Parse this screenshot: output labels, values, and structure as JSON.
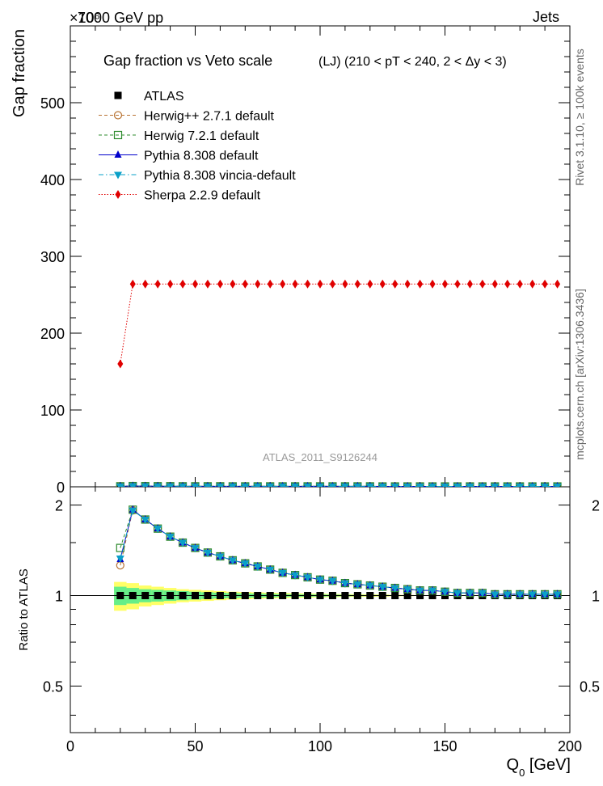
{
  "header": {
    "left": "7000 GeV pp",
    "right": "Jets",
    "multiplier": "×10⁶"
  },
  "side_labels": {
    "rivet": "Rivet 3.1.10, ≥ 100k events",
    "mcplots": "mcplots.cern.ch [arXiv:1306.3436]"
  },
  "chart_data": {
    "type": "line",
    "title": "Gap fraction vs Veto scale",
    "subtitle": "(LJ) (210 < pT < 240, 2 < Δy < 3)",
    "watermark": "ATLAS_2011_S9126244",
    "xlabel_main": "Q",
    "xlabel_sub": "0",
    "xlabel_unit": " [GeV]",
    "ylabel": "Gap fraction",
    "ratio_ylabel": "Ratio to ATLAS",
    "xlim": [
      0,
      200
    ],
    "ylim": [
      0,
      600
    ],
    "ratio_ylim": [
      0.35,
      2.3
    ],
    "x_ticks": [
      0,
      50,
      100,
      150,
      200
    ],
    "y_ticks": [
      0,
      100,
      200,
      300,
      400,
      500
    ],
    "ratio_ticks": [
      0.5,
      1,
      2
    ],
    "x": [
      20,
      25,
      30,
      35,
      40,
      45,
      50,
      55,
      60,
      65,
      70,
      75,
      80,
      85,
      90,
      95,
      100,
      105,
      110,
      115,
      120,
      125,
      130,
      135,
      140,
      145,
      150,
      155,
      160,
      165,
      170,
      175,
      180,
      185,
      190,
      195
    ],
    "series": [
      {
        "name": "ATLAS",
        "color": "#000000",
        "marker": "square-filled",
        "line": "none",
        "values": [
          0.5,
          0.5,
          0.5,
          0.5,
          0.5,
          0.5,
          0.5,
          0.5,
          0.5,
          0.5,
          0.5,
          0.5,
          0.5,
          0.5,
          0.5,
          0.5,
          0.5,
          0.5,
          0.5,
          0.5,
          0.5,
          0.5,
          0.5,
          0.5,
          0.5,
          0.5,
          0.5,
          0.5,
          0.5,
          0.5,
          0.5,
          0.5,
          0.5,
          0.5,
          0.5,
          0.5
        ],
        "ratio": [
          1,
          1,
          1,
          1,
          1,
          1,
          1,
          1,
          1,
          1,
          1,
          1,
          1,
          1,
          1,
          1,
          1,
          1,
          1,
          1,
          1,
          1,
          1,
          1,
          1,
          1,
          1,
          1,
          1,
          1,
          1,
          1,
          1,
          1,
          1,
          1
        ]
      },
      {
        "name": "Herwig++ 2.7.1 default",
        "color": "#b87333",
        "marker": "circle-open",
        "line": "dashed",
        "values": [
          0.6,
          1.0,
          0.9,
          0.8,
          0.8,
          0.7,
          0.7,
          0.7,
          0.7,
          0.6,
          0.6,
          0.6,
          0.6,
          0.6,
          0.6,
          0.6,
          0.6,
          0.6,
          0.6,
          0.6,
          0.6,
          0.5,
          0.5,
          0.5,
          0.5,
          0.5,
          0.5,
          0.5,
          0.5,
          0.5,
          0.5,
          0.5,
          0.5,
          0.5,
          0.5,
          0.5
        ],
        "ratio": [
          1.26,
          1.92,
          1.79,
          1.67,
          1.57,
          1.5,
          1.44,
          1.39,
          1.35,
          1.31,
          1.28,
          1.25,
          1.22,
          1.19,
          1.17,
          1.15,
          1.13,
          1.12,
          1.1,
          1.09,
          1.08,
          1.07,
          1.06,
          1.05,
          1.04,
          1.04,
          1.03,
          1.02,
          1.02,
          1.02,
          1.01,
          1.01,
          1.01,
          1.01,
          1.01,
          1.01
        ]
      },
      {
        "name": "Herwig 7.2.1 default",
        "color": "#2e8b2e",
        "marker": "square-open",
        "line": "dashed",
        "values": [
          0.7,
          1.0,
          0.9,
          0.8,
          0.8,
          0.7,
          0.7,
          0.7,
          0.7,
          0.6,
          0.6,
          0.6,
          0.6,
          0.6,
          0.6,
          0.6,
          0.6,
          0.6,
          0.6,
          0.6,
          0.6,
          0.5,
          0.5,
          0.5,
          0.5,
          0.5,
          0.5,
          0.5,
          0.5,
          0.5,
          0.5,
          0.5,
          0.5,
          0.5,
          0.5,
          0.5
        ],
        "ratio": [
          1.44,
          1.93,
          1.79,
          1.67,
          1.57,
          1.5,
          1.44,
          1.39,
          1.35,
          1.31,
          1.28,
          1.25,
          1.22,
          1.19,
          1.17,
          1.15,
          1.13,
          1.12,
          1.1,
          1.09,
          1.08,
          1.07,
          1.06,
          1.05,
          1.04,
          1.04,
          1.03,
          1.02,
          1.02,
          1.02,
          1.01,
          1.01,
          1.01,
          1.01,
          1.01,
          1.01
        ]
      },
      {
        "name": "Pythia 8.308 default",
        "color": "#0000cc",
        "marker": "triangle-up",
        "line": "solid",
        "values": [
          0.6,
          1.0,
          0.9,
          0.8,
          0.8,
          0.7,
          0.7,
          0.7,
          0.7,
          0.6,
          0.6,
          0.6,
          0.6,
          0.6,
          0.6,
          0.6,
          0.6,
          0.6,
          0.6,
          0.6,
          0.6,
          0.5,
          0.5,
          0.5,
          0.5,
          0.5,
          0.5,
          0.5,
          0.5,
          0.5,
          0.5,
          0.5,
          0.5,
          0.5,
          0.5,
          0.5
        ],
        "ratio": [
          1.32,
          1.93,
          1.79,
          1.67,
          1.57,
          1.5,
          1.44,
          1.39,
          1.35,
          1.31,
          1.28,
          1.25,
          1.22,
          1.19,
          1.17,
          1.15,
          1.13,
          1.12,
          1.1,
          1.09,
          1.08,
          1.07,
          1.06,
          1.05,
          1.04,
          1.04,
          1.03,
          1.02,
          1.02,
          1.02,
          1.01,
          1.01,
          1.01,
          1.01,
          1.01,
          1.01
        ]
      },
      {
        "name": "Pythia 8.308 vincia-default",
        "color": "#0aa0c8",
        "marker": "triangle-down",
        "line": "dashdot",
        "values": [
          0.6,
          1.0,
          0.9,
          0.8,
          0.8,
          0.7,
          0.7,
          0.7,
          0.7,
          0.6,
          0.6,
          0.6,
          0.6,
          0.6,
          0.6,
          0.6,
          0.6,
          0.6,
          0.6,
          0.6,
          0.6,
          0.5,
          0.5,
          0.5,
          0.5,
          0.5,
          0.5,
          0.5,
          0.5,
          0.5,
          0.5,
          0.5,
          0.5,
          0.5,
          0.5,
          0.5
        ],
        "ratio": [
          1.33,
          1.92,
          1.79,
          1.67,
          1.57,
          1.5,
          1.44,
          1.39,
          1.35,
          1.31,
          1.28,
          1.25,
          1.22,
          1.19,
          1.17,
          1.15,
          1.13,
          1.12,
          1.1,
          1.09,
          1.08,
          1.07,
          1.06,
          1.05,
          1.04,
          1.04,
          1.03,
          1.02,
          1.02,
          1.02,
          1.01,
          1.01,
          1.01,
          1.01,
          1.01,
          1.01
        ]
      },
      {
        "name": "Sherpa 2.2.9 default",
        "color": "#e00000",
        "marker": "diamond",
        "line": "dotted",
        "values": [
          160,
          264,
          264,
          264,
          264,
          264,
          264,
          264,
          264,
          264,
          264,
          264,
          264,
          264,
          264,
          264,
          264,
          264,
          264,
          264,
          264,
          264,
          264,
          264,
          264,
          264,
          264,
          264,
          264,
          264,
          264,
          264,
          264,
          264,
          264,
          264
        ],
        "ratio": null
      }
    ],
    "uncertainty_band": {
      "x_edges": [
        17.5,
        22.5,
        27.5,
        32.5,
        37.5,
        42.5,
        47.5,
        52.5,
        57.5,
        62.5,
        67.5,
        72.5,
        77.5,
        82.5,
        87.5,
        92.5,
        97.5,
        102.5,
        107.5,
        112.5,
        117.5,
        122.5,
        127.5,
        132.5,
        137.5,
        142.5
      ],
      "yellow_half_width": [
        0.11,
        0.1,
        0.08,
        0.07,
        0.06,
        0.05,
        0.045,
        0.04,
        0.035,
        0.03,
        0.028,
        0.025,
        0.022,
        0.02,
        0.018,
        0.016,
        0.014,
        0.012,
        0.011,
        0.01,
        0.009,
        0.008,
        0.006,
        0.005,
        0.003
      ],
      "green_half_width": [
        0.07,
        0.06,
        0.05,
        0.045,
        0.04,
        0.035,
        0.03,
        0.026,
        0.022,
        0.019,
        0.017,
        0.015,
        0.013,
        0.011,
        0.01,
        0.009,
        0.008,
        0.007,
        0.006,
        0.005,
        0.004,
        0.004,
        0.003,
        0.002,
        0.001
      ],
      "yellow_color": "#ffff66",
      "green_color": "#66ee88"
    }
  }
}
